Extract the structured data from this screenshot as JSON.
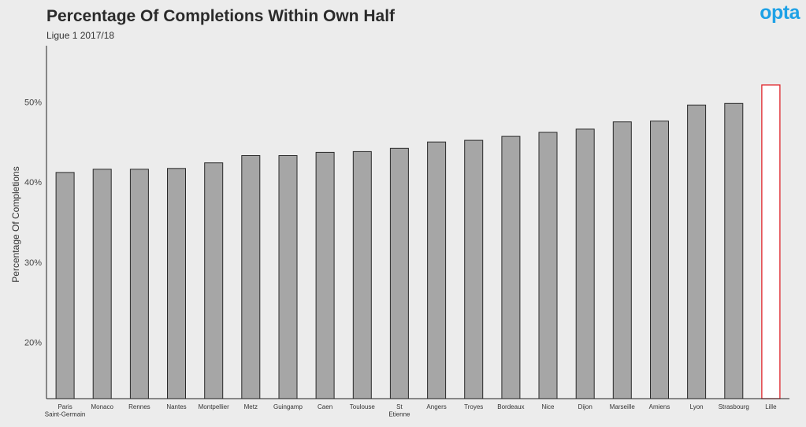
{
  "header": {
    "title": "Percentage Of Completions Within Own Half",
    "subtitle": "Ligue 1 2017/18",
    "logo_text": "opta"
  },
  "colors": {
    "background": "#ececec",
    "bar_fill": "#a6a6a6",
    "bar_stroke": "#2a2a2a",
    "highlight_stroke": "#e0242a",
    "highlight_fill": "#ffffff",
    "logo": "#1ea1e6"
  },
  "chart_data": {
    "type": "bar",
    "title": "Percentage Of Completions Within Own Half",
    "subtitle": "Ligue 1 2017/18",
    "xlabel": "",
    "ylabel": "Percentage Of Completions",
    "ylim": [
      13,
      57
    ],
    "yticks": [
      {
        "value": 20,
        "label": "20%"
      },
      {
        "value": 30,
        "label": "30%"
      },
      {
        "value": 40,
        "label": "40%"
      },
      {
        "value": 50,
        "label": "50%"
      }
    ],
    "grid": false,
    "categories": [
      [
        "Paris",
        "Saint-Germain"
      ],
      [
        "Monaco"
      ],
      [
        "Rennes"
      ],
      [
        "Nantes"
      ],
      [
        "Montpellier"
      ],
      [
        "Metz"
      ],
      [
        "Guingamp"
      ],
      [
        "Caen"
      ],
      [
        "Toulouse"
      ],
      [
        "St",
        "Etienne"
      ],
      [
        "Angers"
      ],
      [
        "Troyes"
      ],
      [
        "Bordeaux"
      ],
      [
        "Nice"
      ],
      [
        "Dijon"
      ],
      [
        "Marseille"
      ],
      [
        "Amiens"
      ],
      [
        "Lyon"
      ],
      [
        "Strasbourg"
      ],
      [
        "Lille"
      ]
    ],
    "values": [
      41.2,
      41.6,
      41.6,
      41.7,
      42.4,
      43.3,
      43.3,
      43.7,
      43.8,
      44.2,
      45.0,
      45.2,
      45.7,
      46.2,
      46.6,
      47.5,
      47.6,
      49.6,
      49.8,
      52.1
    ],
    "highlight": "Lille"
  }
}
